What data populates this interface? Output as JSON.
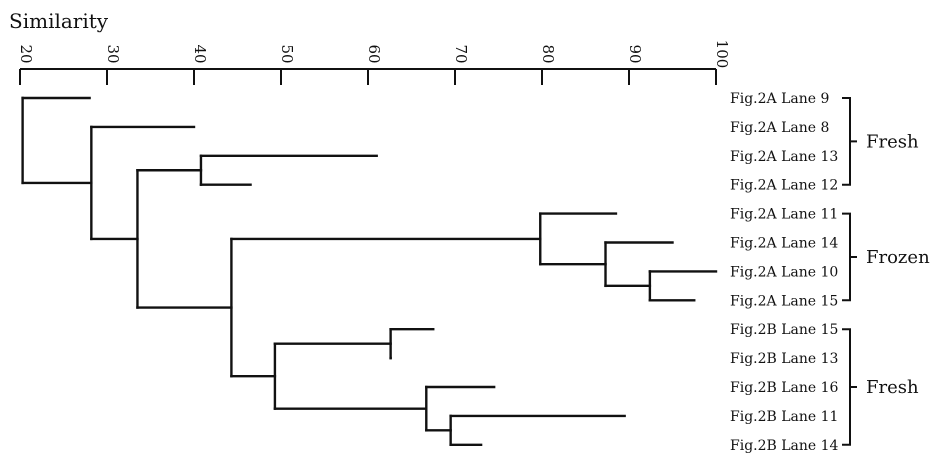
{
  "axis": {
    "label": "Similarity",
    "ticks": [
      20,
      30,
      40,
      50,
      60,
      70,
      80,
      90,
      100
    ],
    "tick_labels": [
      "20",
      "30",
      "40",
      "50",
      "60",
      "70",
      "80",
      "90",
      "100"
    ]
  },
  "leaves": [
    "Fig.2A Lane 9",
    "Fig.2A Lane 8",
    "Fig.2A Lane 13",
    "Fig.2A Lane 12",
    "Fig.2A Lane 11",
    "Fig.2A Lane 14",
    "Fig.2A Lane 10",
    "Fig.2A Lane 15",
    "Fig.2B Lane 15",
    "Fig.2B Lane 13",
    "Fig.2B Lane 16",
    "Fig.2B Lane 11",
    "Fig.2B Lane 14"
  ],
  "groups": [
    {
      "label": "Fresh",
      "from": 0,
      "to": 3
    },
    {
      "label": "Frozen",
      "from": 4,
      "to": 7
    },
    {
      "label": "Fresh",
      "from": 8,
      "to": 12
    }
  ],
  "tree": {
    "sim": 20.3,
    "children": [
      {
        "leaf": 0,
        "sim": 28
      },
      {
        "sim": 28.2,
        "children": [
          {
            "leaf": 1,
            "sim": 40
          },
          {
            "sim": 33.5,
            "children": [
              {
                "sim": 40.8,
                "children": [
                  {
                    "leaf": 2,
                    "sim": 61
                  },
                  {
                    "leaf": 3,
                    "sim": 46.5
                  }
                ]
              },
              {
                "sim": 44.3,
                "children": [
                  {
                    "sim": 79.8,
                    "children": [
                      {
                        "leaf": 4,
                        "sim": 88.5
                      },
                      {
                        "sim": 87.3,
                        "children": [
                          {
                            "leaf": 5,
                            "sim": 95
                          },
                          {
                            "sim": 92.4,
                            "children": [
                              {
                                "leaf": 6,
                                "sim": 100
                              },
                              {
                                "leaf": 7,
                                "sim": 97.5
                              }
                            ]
                          }
                        ]
                      }
                    ]
                  },
                  {
                    "sim": 49.3,
                    "children": [
                      {
                        "sim": 62.6,
                        "children": [
                          {
                            "leaf": 8,
                            "sim": 67.5
                          },
                          {
                            "leaf": 9,
                            "sim": 62.6
                          }
                        ]
                      },
                      {
                        "sim": 66.7,
                        "children": [
                          {
                            "leaf": 10,
                            "sim": 74.5
                          },
                          {
                            "sim": 69.5,
                            "children": [
                              {
                                "leaf": 11,
                                "sim": 89.5
                              },
                              {
                                "leaf": 12,
                                "sim": 73
                              }
                            ]
                          }
                        ]
                      }
                    ]
                  }
                ]
              }
            ]
          }
        ]
      }
    ]
  }
}
